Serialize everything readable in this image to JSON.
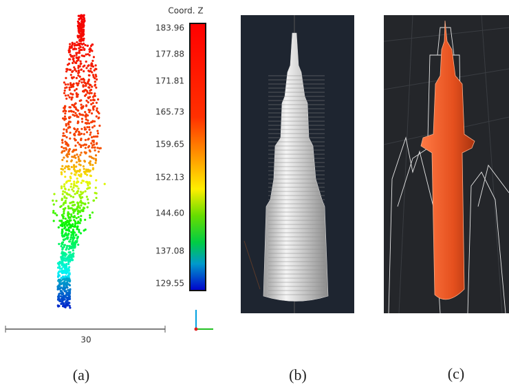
{
  "panels": [
    {
      "label": "(a)",
      "colorbar": {
        "title": "Coord. Z",
        "ticks": [
          183.96,
          177.88,
          171.81,
          165.73,
          159.65,
          152.13,
          {
            "value": 144.6,
            "label": "144.60"
          },
          137.08,
          129.55
        ]
      },
      "scale_bar": 30
    },
    {
      "label": "(b)"
    },
    {
      "label": "(c)"
    }
  ]
}
